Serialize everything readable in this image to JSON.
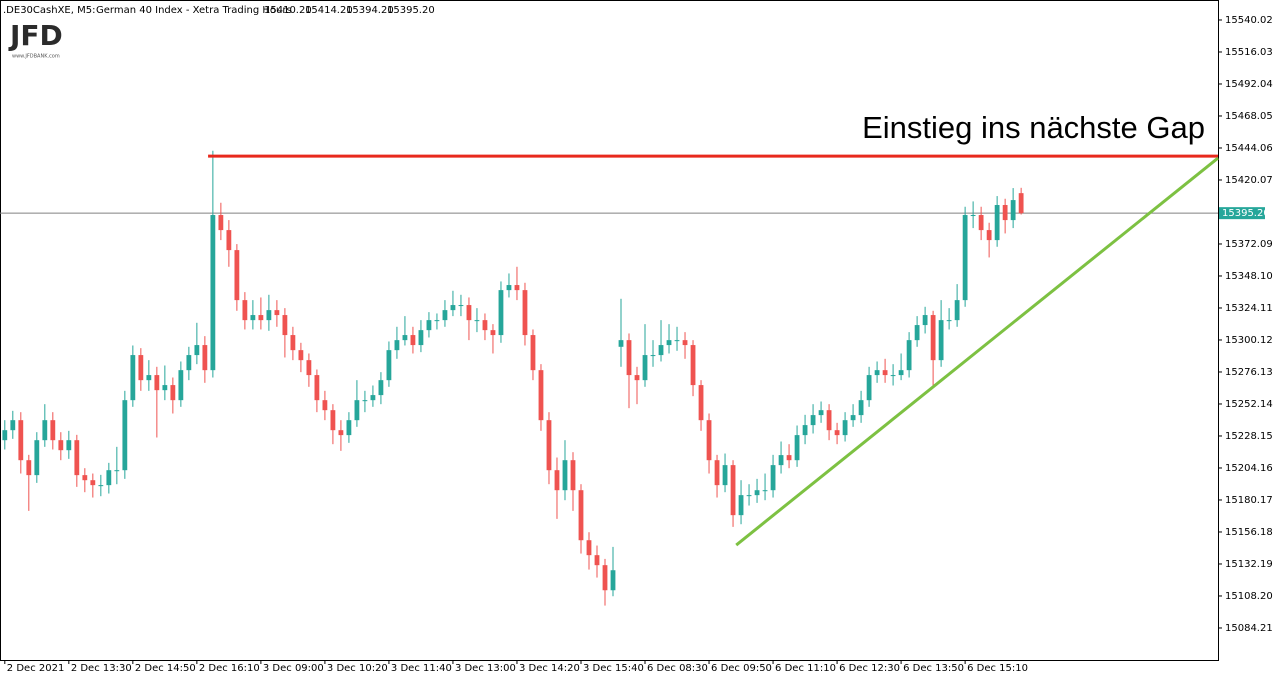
{
  "chart_data": {
    "type": "candlestick",
    "header": {
      "symbol": ".DE30CashXE, M5:",
      "description": "German 40 Index  - Xetra Trading Hours",
      "ohlc_labels": [
        "15410.20",
        "15414.20",
        "15394.20",
        "15395.20"
      ]
    },
    "logo": {
      "name": "JFD",
      "url": "www.JFDBANK.com"
    },
    "annotation": "Einstieg ins nächste Gap",
    "up_color": "#26a69a",
    "down_color": "#ef5350",
    "xlim": [
      -0.6,
      151.6
    ],
    "ylim": [
      15060.2,
      15555.0
    ],
    "yticks": [
      15084.21,
      {
        "value": 15108.2,
        "label": "15108.20"
      },
      15132.19,
      15156.18,
      15180.17,
      15204.16,
      15228.15,
      15252.14,
      15276.13,
      15300.12,
      15324.11,
      {
        "value": 15348.1,
        "label": "15348.10"
      },
      15372.09,
      15420.07,
      15444.06,
      15468.05,
      15492.04,
      15516.03,
      15540.02
    ],
    "xticks": [
      {
        "value": 0,
        "label": "2 Dec 2021"
      },
      {
        "value": 8,
        "label": "2 Dec 13:30"
      },
      {
        "value": 16,
        "label": "2 Dec 14:50"
      },
      {
        "value": 24,
        "label": "2 Dec 16:10"
      },
      {
        "value": 32,
        "label": "3 Dec 09:00"
      },
      {
        "value": 40,
        "label": "3 Dec 10:20"
      },
      {
        "value": 48,
        "label": "3 Dec 11:40"
      },
      {
        "value": 56,
        "label": "3 Dec 13:00"
      },
      {
        "value": 64,
        "label": "3 Dec 14:20"
      },
      {
        "value": 72,
        "label": "3 Dec 15:40"
      },
      {
        "value": 80,
        "label": "6 Dec 08:30"
      },
      {
        "value": 88,
        "label": "6 Dec 09:50"
      },
      {
        "value": 96,
        "label": "6 Dec 11:10"
      },
      {
        "value": 104,
        "label": "6 Dec 12:30"
      },
      {
        "value": 112,
        "label": "6 Dec 13:50"
      },
      {
        "value": 120,
        "label": "6 Dec 15:10"
      }
    ],
    "price_line": {
      "value": 15395.2,
      "label": "15395.20",
      "color": "#808080"
    },
    "lines": [
      {
        "color": "#e8291c",
        "x": [
          25.4,
          151.6
        ],
        "y": [
          15438,
          15438
        ]
      },
      {
        "color": "#7dc142",
        "x": [
          91.4,
          151.6
        ],
        "y": [
          15146.4,
          15436.5
        ]
      }
    ],
    "candles": [
      [
        15225,
        15240,
        15218,
        15232.5
      ],
      [
        15232.5,
        15247,
        15226,
        15240
      ],
      [
        15240,
        15246,
        15200,
        15210
      ],
      [
        15210,
        15214,
        15172,
        15198.8
      ],
      [
        15198.8,
        15231,
        15193,
        15225
      ],
      [
        15225,
        15252,
        15220,
        15240
      ],
      [
        15240,
        15246,
        15218,
        15225
      ],
      [
        15225,
        15231,
        15210,
        15217.5
      ],
      [
        15217.5,
        15232,
        15211,
        15225
      ],
      [
        15225,
        15229,
        15190,
        15198.8
      ],
      [
        15198.8,
        15204,
        15186,
        15195
      ],
      [
        15195,
        15200,
        15182,
        15191.3
      ],
      [
        15191.3,
        15199,
        15183,
        15191.3
      ],
      [
        15191.3,
        15208,
        15185,
        15202.5
      ],
      [
        15202.5,
        15220,
        15192,
        15202.5
      ],
      [
        15202.5,
        15262,
        15196,
        15255
      ],
      [
        15255,
        15296,
        15250,
        15288.8
      ],
      [
        15288.8,
        15294,
        15262,
        15270
      ],
      [
        15270,
        15285,
        15262,
        15273.8
      ],
      [
        15273.8,
        15280,
        15227,
        15262.5
      ],
      [
        15262.5,
        15281,
        15255,
        15266.3
      ],
      [
        15266.3,
        15272,
        15245,
        15255
      ],
      [
        15255,
        15284,
        15250,
        15277.5
      ],
      [
        15277.5,
        15295,
        15270,
        15288.8
      ],
      [
        15288.8,
        15313,
        15282,
        15296.3
      ],
      [
        15296.3,
        15303,
        15268,
        15277.5
      ],
      [
        15277.5,
        15442,
        15272,
        15393.8
      ],
      [
        15393.8,
        15403,
        15375,
        15382.5
      ],
      [
        15382.5,
        15390,
        15355,
        15367.5
      ],
      [
        15367.5,
        15372,
        15322,
        15330
      ],
      [
        15330,
        15336,
        15308,
        15315
      ],
      [
        15315,
        15330,
        15308,
        15318.8
      ],
      [
        15318.8,
        15332,
        15308,
        15315
      ],
      [
        15315,
        15334,
        15307,
        15322.5
      ],
      [
        15322.5,
        15330,
        15310,
        15318.8
      ],
      [
        15318.8,
        15324,
        15287,
        15303.8
      ],
      [
        15303.8,
        15310,
        15285,
        15292.5
      ],
      [
        15292.5,
        15298,
        15276,
        15285
      ],
      [
        15285,
        15290,
        15265,
        15273.8
      ],
      [
        15273.8,
        15278,
        15246,
        15255
      ],
      [
        15255,
        15262,
        15240,
        15247.5
      ],
      [
        15247.5,
        15252,
        15222,
        15232.5
      ],
      [
        15232.5,
        15240,
        15217,
        15228.8
      ],
      [
        15228.8,
        15246,
        15223,
        15240
      ],
      [
        15240,
        15270,
        15235,
        15255
      ],
      [
        15255,
        15262,
        15246,
        15255
      ],
      [
        15255,
        15266,
        15250,
        15258.8
      ],
      [
        15258.8,
        15276,
        15252,
        15270
      ],
      [
        15270,
        15299,
        15265,
        15292.5
      ],
      [
        15292.5,
        15310,
        15286,
        15300
      ],
      [
        15300,
        15318,
        15296,
        15303.8
      ],
      [
        15303.8,
        15310,
        15290,
        15296.3
      ],
      [
        15296.3,
        15315,
        15291,
        15307.5
      ],
      [
        15307.5,
        15321,
        15302,
        15315
      ],
      [
        15315,
        15320,
        15308,
        15315
      ],
      [
        15315,
        15330,
        15310,
        15322.5
      ],
      [
        15322.5,
        15337,
        15318,
        15326.3
      ],
      [
        15326.3,
        15334,
        15318,
        15326.3
      ],
      [
        15326.3,
        15332,
        15300,
        15315
      ],
      [
        15315,
        15324,
        15306,
        15315
      ],
      [
        15315,
        15320,
        15300,
        15307.5
      ],
      [
        15307.5,
        15312,
        15290,
        15303.8
      ],
      [
        15303.8,
        15344,
        15298,
        15337.5
      ],
      [
        15337.5,
        15350,
        15332,
        15341.3
      ],
      [
        15341.3,
        15355,
        15330,
        15337.5
      ],
      [
        15337.5,
        15343,
        15296,
        15303.8
      ],
      [
        15303.8,
        15308,
        15270,
        15277.5
      ],
      [
        15277.5,
        15282,
        15232,
        15240
      ],
      [
        15240,
        15246,
        15192,
        15202.5
      ],
      [
        15202.5,
        15212,
        15166,
        15187.5
      ],
      [
        15187.5,
        15225,
        15180,
        15210
      ],
      [
        15210,
        15216,
        15172,
        15187.5
      ],
      [
        15187.5,
        15192,
        15140,
        15150
      ],
      [
        15150,
        15156,
        15128,
        15138.8
      ],
      [
        15138.8,
        15146,
        15122,
        15131.3
      ],
      [
        15131.3,
        15136,
        15101,
        15112.5
      ],
      [
        15112.5,
        15145,
        15108,
        15127.5
      ],
      [
        15295,
        15331,
        15280,
        15300
      ],
      [
        15300,
        15305,
        15249,
        15273.8
      ],
      [
        15273.8,
        15280,
        15252,
        15270
      ],
      [
        15270,
        15312,
        15265,
        15288.8
      ],
      [
        15288.8,
        15300,
        15280,
        15288.8
      ],
      [
        15288.8,
        15315,
        15284,
        15296.3
      ],
      [
        15296.3,
        15312,
        15290,
        15300
      ],
      [
        15300,
        15310,
        15292,
        15300
      ],
      [
        15300,
        15306,
        15286,
        15296.3
      ],
      [
        15296.3,
        15300,
        15258,
        15266.3
      ],
      [
        15266.3,
        15270,
        15232,
        15240
      ],
      [
        15240,
        15245,
        15200,
        15210
      ],
      [
        15210,
        15214,
        15182,
        15191.3
      ],
      [
        15191.3,
        15215,
        15186,
        15206.3
      ],
      [
        15206.3,
        15210,
        15160,
        15168.8
      ],
      [
        15168.8,
        15195,
        15162,
        15183.8
      ],
      [
        15183.8,
        15192,
        15176,
        15183.8
      ],
      [
        15183.8,
        15196,
        15178,
        15187.5
      ],
      [
        15187.5,
        15200,
        15180,
        15187.5
      ],
      [
        15187.5,
        15214,
        15182,
        15206.3
      ],
      [
        15206.3,
        15224,
        15200,
        15213.8
      ],
      [
        15213.8,
        15222,
        15204,
        15210
      ],
      [
        15210,
        15236,
        15205,
        15228.8
      ],
      [
        15228.8,
        15244,
        15222,
        15236.3
      ],
      [
        15236.3,
        15252,
        15230,
        15243.8
      ],
      [
        15243.8,
        15254,
        15238,
        15247.5
      ],
      [
        15247.5,
        15252,
        15225,
        15232.5
      ],
      [
        15232.5,
        15238,
        15222,
        15228.8
      ],
      [
        15228.8,
        15246,
        15224,
        15240
      ],
      [
        15240,
        15252,
        15235,
        15243.8
      ],
      [
        15243.8,
        15262,
        15238,
        15255
      ],
      [
        15255,
        15280,
        15250,
        15273.8
      ],
      [
        15273.8,
        15284,
        15268,
        15277.5
      ],
      [
        15277.5,
        15286,
        15268,
        15273.8
      ],
      [
        15273.8,
        15282,
        15266,
        15273.8
      ],
      [
        15273.8,
        15290,
        15270,
        15277.5
      ],
      [
        15277.5,
        15306,
        15272,
        15300
      ],
      [
        15300,
        15318,
        15295,
        15311.3
      ],
      [
        15311.3,
        15325,
        15305,
        15318.8
      ],
      [
        15318.8,
        15322,
        15266,
        15285
      ],
      [
        15285,
        15330,
        15280,
        15315
      ],
      [
        15315,
        15324,
        15308,
        15315
      ],
      [
        15315,
        15342,
        15310,
        15330
      ],
      [
        15330,
        15400,
        15325,
        15393.8
      ],
      [
        15393.8,
        15404,
        15384,
        15393.8
      ],
      [
        15393.8,
        15400,
        15375,
        15382.5
      ],
      [
        15382.5,
        15388,
        15362,
        15375
      ],
      [
        15375,
        15408,
        15370,
        15401.3
      ],
      [
        15401.3,
        15406,
        15380,
        15390
      ],
      [
        15390,
        15414,
        15384,
        15405
      ],
      [
        15410.2,
        15414.2,
        15394.2,
        15395.2
      ]
    ]
  }
}
